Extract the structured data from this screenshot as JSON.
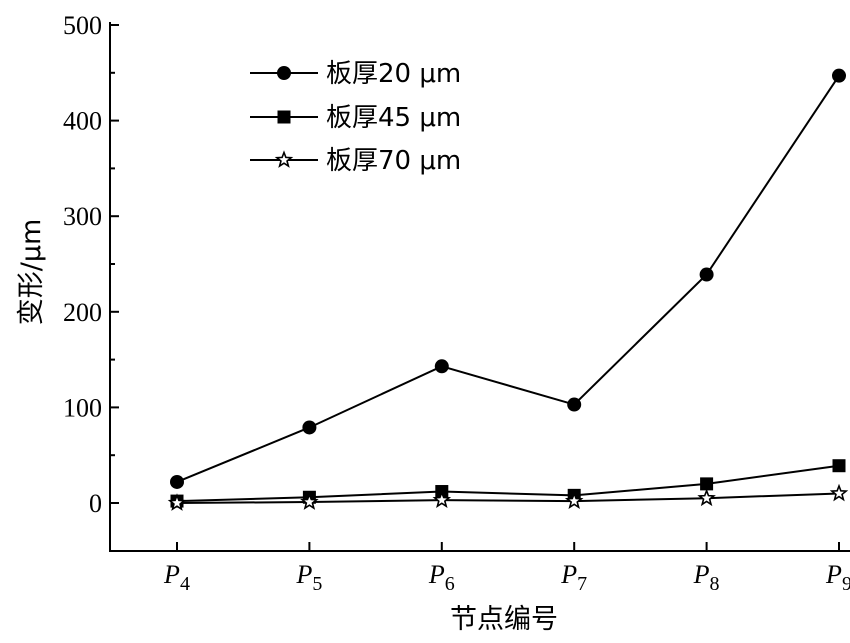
{
  "chart_data": {
    "type": "line",
    "xlabel": "节点编号",
    "ylabel": "变形/μm",
    "ylim": [
      0,
      500
    ],
    "yticks": [
      0,
      100,
      200,
      300,
      400,
      500
    ],
    "categories": [
      {
        "base": "P",
        "sub": "4"
      },
      {
        "base": "P",
        "sub": "5"
      },
      {
        "base": "P",
        "sub": "6"
      },
      {
        "base": "P",
        "sub": "7"
      },
      {
        "base": "P",
        "sub": "8"
      },
      {
        "base": "P",
        "sub": "9"
      }
    ],
    "legend_position": "top-left",
    "grid": false,
    "series": [
      {
        "name": "板厚20 μm",
        "marker": "circle",
        "values": [
          22,
          79,
          143,
          103,
          239,
          447
        ]
      },
      {
        "name": "板厚45 μm",
        "marker": "square",
        "values": [
          2,
          6,
          12,
          8,
          20,
          39
        ]
      },
      {
        "name": "板厚70 μm",
        "marker": "star",
        "values": [
          0,
          1,
          3,
          2,
          5,
          10
        ]
      }
    ]
  }
}
